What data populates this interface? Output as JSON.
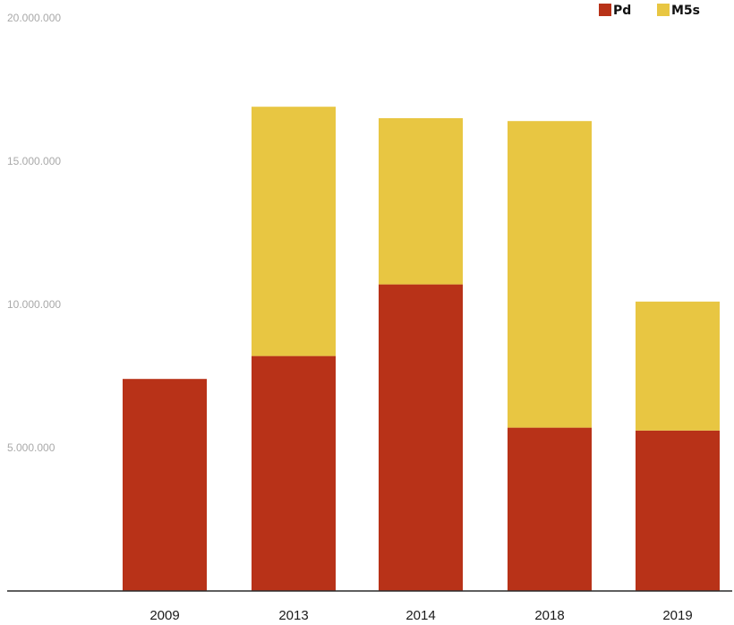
{
  "chart_data": {
    "type": "bar",
    "stacked": true,
    "categories": [
      "2009",
      "2013",
      "2014",
      "2018",
      "2019"
    ],
    "series": [
      {
        "name": "Pd",
        "color": "#b83218",
        "values": [
          7400000,
          8200000,
          10700000,
          5700000,
          5600000
        ]
      },
      {
        "name": "M5s",
        "color": "#e8c642",
        "values": [
          0,
          8700000,
          5800000,
          10700000,
          4500000
        ]
      }
    ],
    "yticks": [
      "20.000.000",
      "15.000.000",
      "10.000.000",
      "5.000.000"
    ],
    "ytick_values": [
      20000000,
      15000000,
      10000000,
      5000000
    ],
    "ylim": [
      0,
      20000000
    ],
    "grid": false,
    "legend_position": "top-right",
    "title": "",
    "xlabel": "",
    "ylabel": ""
  }
}
